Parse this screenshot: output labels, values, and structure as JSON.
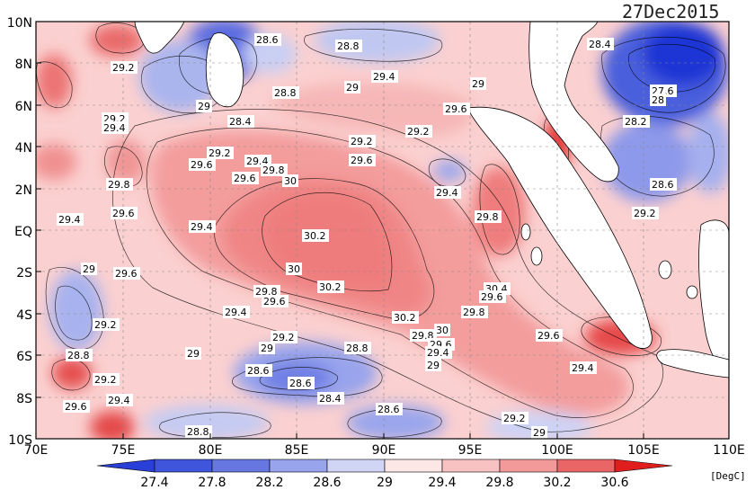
{
  "map": {
    "date": "27Dec2015",
    "unit": "[DegC]",
    "lat_ticks": [
      "10N",
      "8N",
      "6N",
      "4N",
      "2N",
      "EQ",
      "2S",
      "4S",
      "6S",
      "8S",
      "10S"
    ],
    "lon_ticks": [
      "70E",
      "75E",
      "80E",
      "85E",
      "90E",
      "95E",
      "100E",
      "105E",
      "110E"
    ],
    "colorbar": {
      "labels": [
        "27.4",
        "27.8",
        "28.2",
        "28.6",
        "29",
        "29.4",
        "29.8",
        "30.2",
        "30.6"
      ],
      "colors": [
        "#2a3fd8",
        "#5566e0",
        "#8392e8",
        "#b2bcf0",
        "#e6e8fa",
        "#fde0e0",
        "#f7b3b3",
        "#ef8383",
        "#e75050",
        "#e01e1e"
      ]
    },
    "contour_labels": [
      "28.6",
      "28.8",
      "28.4",
      "29.2",
      "29",
      "29.4",
      "29.6",
      "27.6",
      "28",
      "28.2",
      "29.8",
      "30",
      "30.2",
      "30.4",
      "28.8",
      "28.6",
      "28.4",
      "28.8"
    ]
  }
}
